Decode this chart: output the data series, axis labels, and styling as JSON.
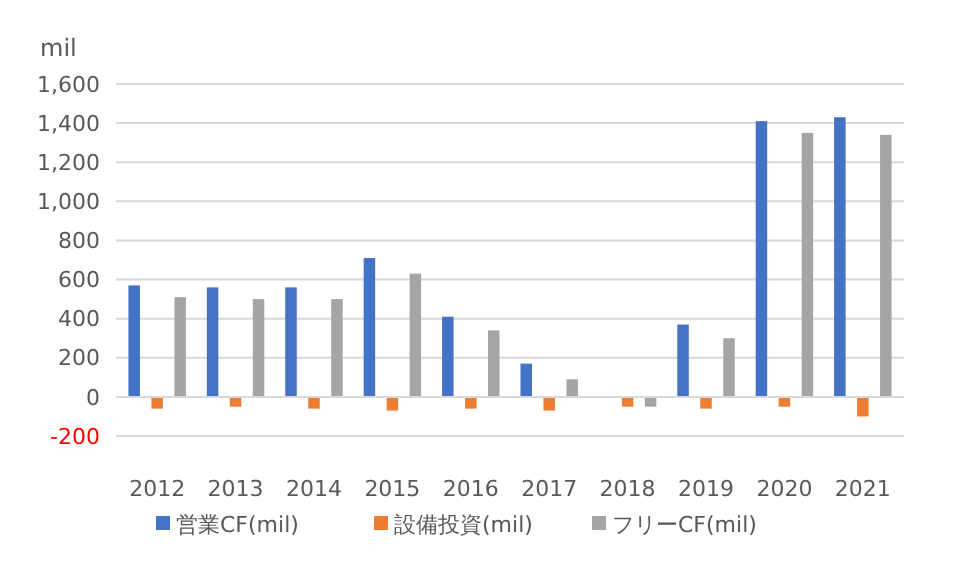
{
  "chart_data": {
    "type": "bar",
    "ylabel": "mil",
    "categories": [
      "2012",
      "2013",
      "2014",
      "2015",
      "2016",
      "2017",
      "2018",
      "2019",
      "2020",
      "2021"
    ],
    "series": [
      {
        "name": "営業CF(mil)",
        "color": "#4472c4",
        "values": [
          570,
          560,
          560,
          710,
          410,
          170,
          0,
          370,
          1410,
          1430
        ]
      },
      {
        "name": "設備投資(mil)",
        "color": "#ed7d31",
        "values": [
          -60,
          -50,
          -60,
          -70,
          -60,
          -70,
          -50,
          -60,
          -50,
          -100
        ]
      },
      {
        "name": "フリーCF(mil)",
        "color": "#a5a5a5",
        "values": [
          510,
          500,
          500,
          630,
          340,
          90,
          -50,
          300,
          1350,
          1340
        ]
      }
    ],
    "ylim": [
      -200,
      1600
    ],
    "yticks": [
      {
        "value": -200,
        "label": "-200"
      },
      0,
      200,
      400,
      {
        "value": 600,
        "label": "600"
      },
      800,
      {
        "value": 1000,
        "label": "1,000"
      },
      {
        "value": 1200,
        "label": "1,200"
      },
      {
        "value": 1400,
        "label": "1,400"
      },
      {
        "value": 1600,
        "label": "1,600"
      }
    ],
    "grid": "y",
    "legend": "bottom"
  }
}
